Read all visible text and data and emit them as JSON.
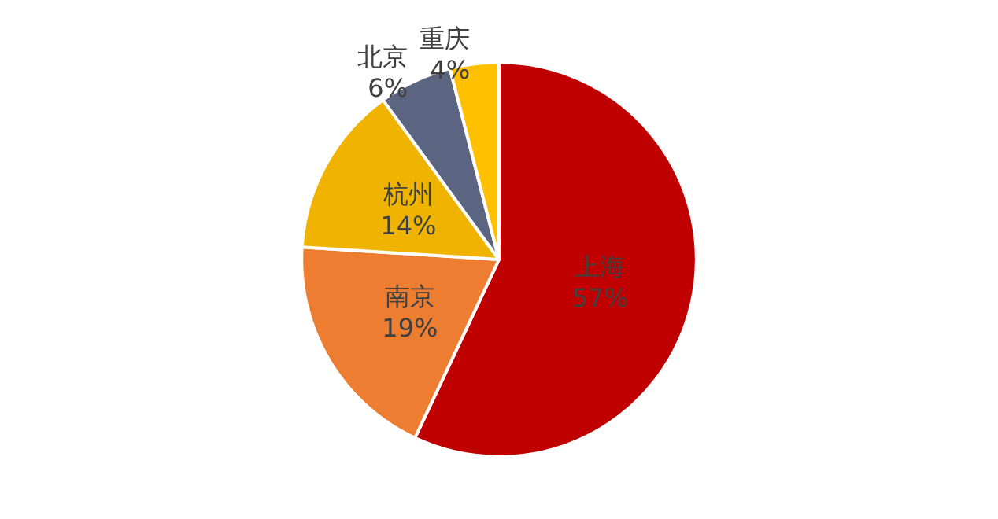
{
  "chart_data": {
    "type": "pie",
    "categories": [
      "上海",
      "南京",
      "杭州",
      "北京",
      "重庆"
    ],
    "values": [
      57,
      19,
      14,
      6,
      4
    ],
    "value_labels": [
      "57%",
      "19%",
      "14%",
      "6%",
      "4%"
    ],
    "colors": [
      "#c00000",
      "#ed7d31",
      "#f0b400",
      "#5b6480",
      "#ffc000"
    ],
    "legend": false
  }
}
